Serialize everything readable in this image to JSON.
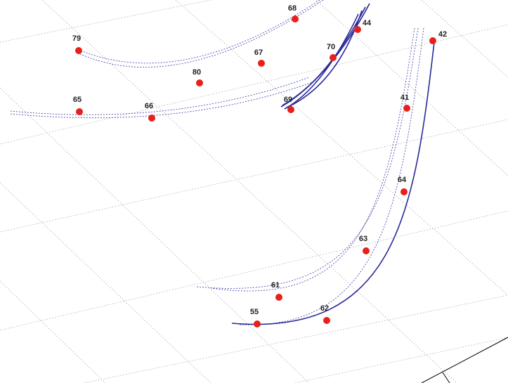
{
  "points": [
    {
      "label": "68"
    },
    {
      "label": "79"
    },
    {
      "label": "44"
    },
    {
      "label": "42"
    },
    {
      "label": "70"
    },
    {
      "label": "67"
    },
    {
      "label": "80"
    },
    {
      "label": "41"
    },
    {
      "label": "69"
    },
    {
      "label": "65"
    },
    {
      "label": "66"
    },
    {
      "label": "64"
    },
    {
      "label": "63"
    },
    {
      "label": "61"
    },
    {
      "label": "62"
    },
    {
      "label": "55"
    }
  ]
}
